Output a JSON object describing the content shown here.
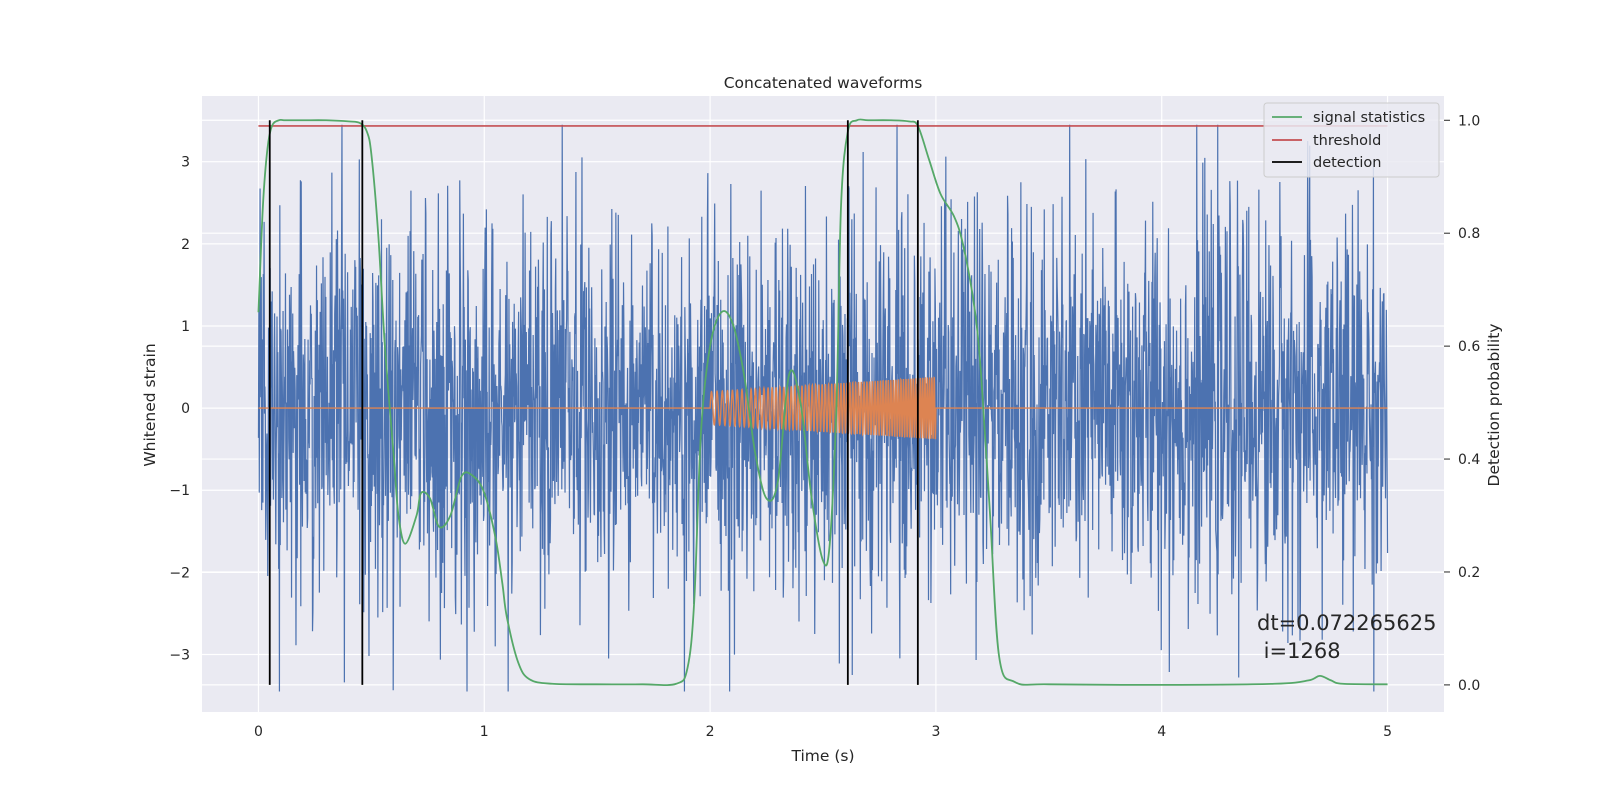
{
  "chart_data": {
    "type": "line",
    "title": "Concatenated waveforms",
    "xlabel": "Time (s)",
    "ylabel": "Whitened strain",
    "y2label": "Detection probability",
    "xlim": [
      -0.25,
      5.25
    ],
    "ylim": [
      -3.7,
      3.8
    ],
    "y2lim": [
      -0.048,
      1.043
    ],
    "xticks": [
      0,
      1,
      2,
      3,
      4,
      5
    ],
    "xtick_labels": [
      "0",
      "1",
      "2",
      "3",
      "4",
      "5"
    ],
    "yticks": [
      -3,
      -2,
      -1,
      0,
      1,
      2,
      3
    ],
    "ytick_labels": [
      "−3",
      "−2",
      "−1",
      "0",
      "1",
      "2",
      "3"
    ],
    "y2ticks": [
      0.0,
      0.2,
      0.4,
      0.6,
      0.8,
      1.0
    ],
    "y2tick_labels": [
      "0.0",
      "0.2",
      "0.4",
      "0.6",
      "0.8",
      "1.0"
    ],
    "grid": true,
    "legend_position": "top-right",
    "colors": {
      "strain": "#4c72b0",
      "injection": "#dd8452",
      "signal_statistics": "#55a868",
      "threshold": "#c44e52",
      "detection": "#000000",
      "plot_bg": "#eaeaf2",
      "grid": "#ffffff"
    },
    "strain_series": {
      "x_range": [
        0,
        5
      ],
      "envelope_p95": 2.3,
      "max_abs": 3.45
    },
    "injection_series": {
      "x_range": [
        2.0,
        3.0
      ],
      "amplitude_start": 0.2,
      "amplitude_end": 0.38,
      "baseline": 0
    },
    "series": [
      {
        "name": "signal statistics",
        "axis": "right",
        "x": [
          0.0,
          0.02,
          0.04,
          0.06,
          0.09,
          0.12,
          0.2,
          0.3,
          0.4,
          0.45,
          0.48,
          0.5,
          0.53,
          0.56,
          0.6,
          0.62,
          0.65,
          0.7,
          0.72,
          0.76,
          0.8,
          0.85,
          0.9,
          0.95,
          1.0,
          1.05,
          1.08,
          1.1,
          1.15,
          1.2,
          1.3,
          1.5,
          1.7,
          1.85,
          1.9,
          1.93,
          1.96,
          2.0,
          2.05,
          2.1,
          2.15,
          2.2,
          2.25,
          2.3,
          2.35,
          2.4,
          2.45,
          2.5,
          2.53,
          2.56,
          2.58,
          2.61,
          2.65,
          2.7,
          2.8,
          2.88,
          2.92,
          2.97,
          3.02,
          3.08,
          3.12,
          3.17,
          3.2,
          3.24,
          3.28,
          3.35,
          3.5,
          4.0,
          4.5,
          4.65,
          4.7,
          4.75,
          4.8,
          5.0
        ],
        "y": [
          0.66,
          0.85,
          0.95,
          0.99,
          1.0,
          1.0,
          1.0,
          1.0,
          0.998,
          0.995,
          0.98,
          0.94,
          0.8,
          0.6,
          0.4,
          0.3,
          0.25,
          0.3,
          0.34,
          0.33,
          0.28,
          0.3,
          0.37,
          0.37,
          0.34,
          0.26,
          0.18,
          0.12,
          0.04,
          0.01,
          0.002,
          0.001,
          0.001,
          0.002,
          0.03,
          0.15,
          0.45,
          0.6,
          0.66,
          0.64,
          0.55,
          0.41,
          0.33,
          0.36,
          0.55,
          0.5,
          0.33,
          0.22,
          0.25,
          0.5,
          0.85,
          0.98,
          1.0,
          1.0,
          1.0,
          0.998,
          0.99,
          0.93,
          0.87,
          0.83,
          0.78,
          0.67,
          0.55,
          0.3,
          0.05,
          0.005,
          0.001,
          0.0,
          0.002,
          0.008,
          0.016,
          0.008,
          0.002,
          0.001
        ]
      },
      {
        "name": "threshold",
        "axis": "right",
        "x": [
          0.0,
          5.0
        ],
        "y": [
          0.99,
          0.99
        ]
      },
      {
        "name": "detection",
        "axis": "right",
        "type": "vlines",
        "x": [
          0.05,
          0.46,
          2.61,
          2.92
        ],
        "ymin": 0.0,
        "ymax": 1.0
      }
    ],
    "annotation": {
      "line1": "dt=0.072265625",
      "line2": " i=1268",
      "x": 4.5,
      "y": -2.75
    }
  }
}
